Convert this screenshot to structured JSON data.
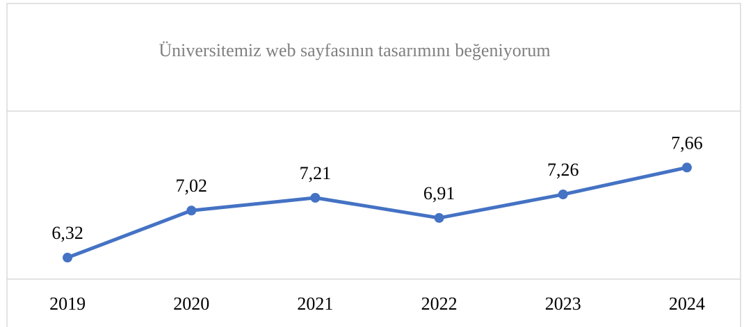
{
  "chart_data": {
    "type": "line",
    "title": "Üniversitemiz web sayfasının tasarımını beğeniyorum",
    "categories": [
      "2019",
      "2020",
      "2021",
      "2022",
      "2023",
      "2024"
    ],
    "values": [
      6.32,
      7.02,
      7.21,
      6.91,
      7.26,
      7.66
    ],
    "value_labels": [
      "6,32",
      "7,02",
      "7,21",
      "6,91",
      "7,26",
      "7,66"
    ],
    "color": "#4472c4",
    "ylim": [
      6,
      8.5
    ],
    "grid": true
  }
}
